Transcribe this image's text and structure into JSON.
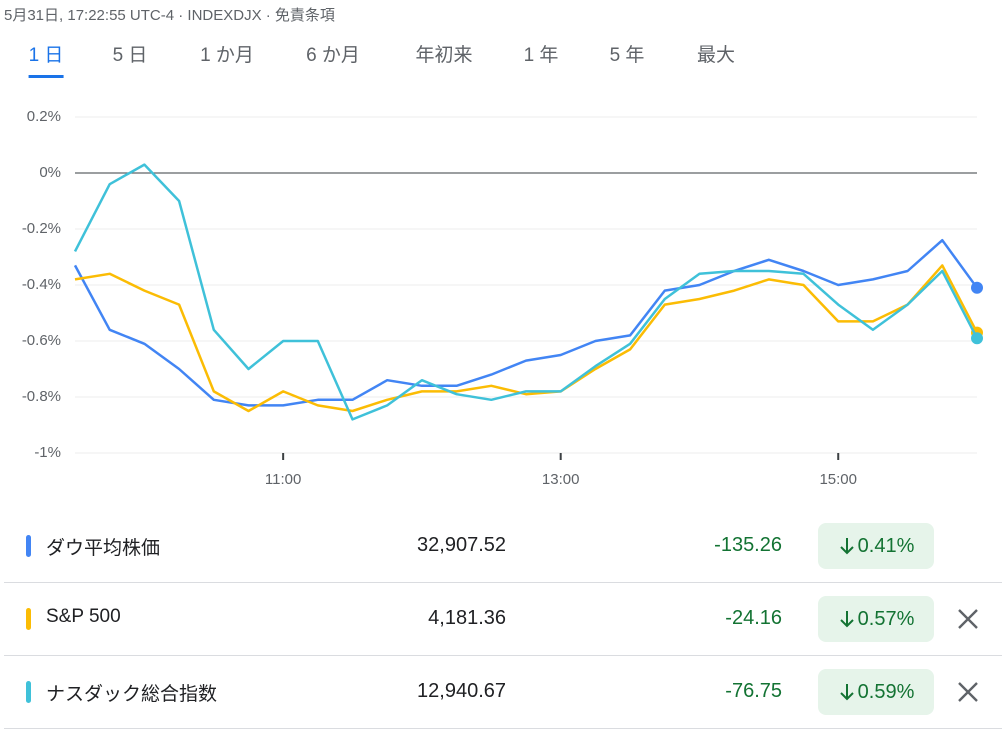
{
  "header": {
    "text": "5月31日, 17:22:55 UTC-4 · INDEXDJX · 免責条項"
  },
  "tabs": [
    "1 日",
    "5 日",
    "1 か月",
    "6 か月",
    "年初来",
    "1 年",
    "5 年",
    "最大"
  ],
  "chart_data": {
    "type": "line",
    "x": [
      "09:30",
      "09:45",
      "10:00",
      "10:15",
      "10:30",
      "10:45",
      "11:00",
      "11:15",
      "11:30",
      "11:45",
      "12:00",
      "12:15",
      "12:30",
      "12:45",
      "13:00",
      "13:15",
      "13:30",
      "13:45",
      "14:00",
      "14:15",
      "14:30",
      "14:45",
      "15:00",
      "15:15",
      "15:30",
      "15:45",
      "16:00"
    ],
    "xlim": [
      "09:30",
      "16:00"
    ],
    "xticks": [
      "11:00",
      "13:00",
      "15:00"
    ],
    "ylim": [
      -1,
      0.2
    ],
    "yticks": [
      {
        "value": 0.2,
        "label": "0.2%"
      },
      {
        "value": 0,
        "label": "0%"
      },
      {
        "value": -0.2,
        "label": "-0.2%"
      },
      {
        "value": -0.4,
        "label": "-0.4%"
      },
      {
        "value": -0.6,
        "label": "-0.6%"
      },
      {
        "value": -0.8,
        "label": "-0.8%"
      },
      {
        "value": -1,
        "label": "-1%"
      }
    ],
    "grid": true,
    "baseline": 0,
    "series": [
      {
        "name": "ダウ平均株価",
        "color": "#4285f4",
        "values": [
          -0.33,
          -0.56,
          -0.61,
          -0.7,
          -0.81,
          -0.83,
          -0.83,
          -0.81,
          -0.81,
          -0.74,
          -0.76,
          -0.76,
          -0.72,
          -0.67,
          -0.65,
          -0.6,
          -0.58,
          -0.42,
          -0.4,
          -0.35,
          -0.31,
          -0.35,
          -0.4,
          -0.38,
          -0.35,
          -0.24,
          -0.41
        ]
      },
      {
        "name": "S&P 500",
        "color": "#fbbc04",
        "values": [
          -0.38,
          -0.36,
          -0.42,
          -0.47,
          -0.78,
          -0.85,
          -0.78,
          -0.83,
          -0.85,
          -0.81,
          -0.78,
          -0.78,
          -0.76,
          -0.79,
          -0.78,
          -0.7,
          -0.63,
          -0.47,
          -0.45,
          -0.42,
          -0.38,
          -0.4,
          -0.53,
          -0.53,
          -0.47,
          -0.33,
          -0.57
        ]
      },
      {
        "name": "ナスダック総合指数",
        "color": "#3fc1d9",
        "values": [
          -0.28,
          -0.04,
          0.03,
          -0.1,
          -0.56,
          -0.7,
          -0.6,
          -0.6,
          -0.88,
          -0.83,
          -0.74,
          -0.79,
          -0.81,
          -0.78,
          -0.78,
          -0.69,
          -0.61,
          -0.45,
          -0.36,
          -0.35,
          -0.35,
          -0.36,
          -0.47,
          -0.56,
          -0.47,
          -0.35,
          -0.59
        ]
      }
    ]
  },
  "quotes": [
    {
      "price": "32,907.52",
      "change": "-135.26",
      "change_percent": "0.41%"
    },
    {
      "price": "4,181.36",
      "change": "-24.16",
      "change_percent": "0.57%"
    },
    {
      "price": "12,940.67",
      "change": "-76.75",
      "change_percent": "0.59%"
    }
  ]
}
